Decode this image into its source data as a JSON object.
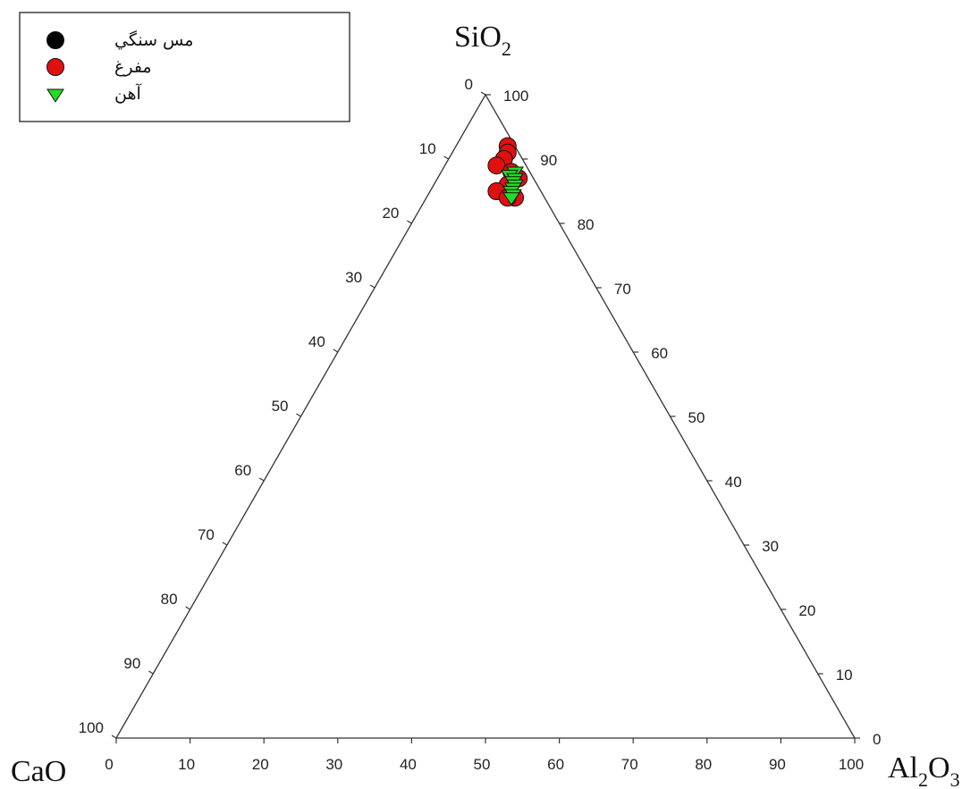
{
  "chart_data": {
    "type": "scatter",
    "subtype": "ternary",
    "axes": {
      "top": {
        "label": "SiO",
        "subscript": "2"
      },
      "left": {
        "label": "CaO",
        "subscript": ""
      },
      "right": {
        "label": "Al",
        "subscript": "2",
        "label_after": "O",
        "subscript_after": "3"
      }
    },
    "ticks": [
      0,
      10,
      20,
      30,
      40,
      50,
      60,
      70,
      80,
      90,
      100
    ],
    "tick_labels": [
      "0",
      "10",
      "20",
      "30",
      "40",
      "50",
      "60",
      "70",
      "80",
      "90",
      "100"
    ],
    "grid": false,
    "legend": {
      "position": "top-left",
      "entries": [
        {
          "label": "مس سنگي",
          "marker": "circle",
          "color": "#000000"
        },
        {
          "label": "مفرغ",
          "marker": "circle",
          "color": "#e01010"
        },
        {
          "label": "آهن",
          "marker": "triangle-down",
          "color": "#22dd22"
        }
      ]
    },
    "series": [
      {
        "name": "مس سنگي",
        "marker": "circle",
        "color": "#000000",
        "points": []
      },
      {
        "name": "مفرغ",
        "marker": "circle",
        "color": "#e01010",
        "points": [
          {
            "SiO2": 92,
            "CaO": 1,
            "Al2O3": 7
          },
          {
            "SiO2": 91,
            "CaO": 1.5,
            "Al2O3": 7.5
          },
          {
            "SiO2": 90,
            "CaO": 2.5,
            "Al2O3": 7.5
          },
          {
            "SiO2": 89,
            "CaO": 4,
            "Al2O3": 7
          },
          {
            "SiO2": 88,
            "CaO": 2.5,
            "Al2O3": 9.5
          },
          {
            "SiO2": 87,
            "CaO": 2,
            "Al2O3": 11
          },
          {
            "SiO2": 86,
            "CaO": 4,
            "Al2O3": 10
          },
          {
            "SiO2": 85,
            "CaO": 6,
            "Al2O3": 9
          },
          {
            "SiO2": 84,
            "CaO": 4,
            "Al2O3": 12
          },
          {
            "SiO2": 84,
            "CaO": 5,
            "Al2O3": 11
          }
        ]
      },
      {
        "name": "آهن",
        "marker": "triangle-down",
        "color": "#22dd22",
        "points": [
          {
            "SiO2": 88,
            "CaO": 2,
            "Al2O3": 10
          },
          {
            "SiO2": 87.5,
            "CaO": 3,
            "Al2O3": 9.5
          },
          {
            "SiO2": 87,
            "CaO": 2.5,
            "Al2O3": 10.5
          },
          {
            "SiO2": 86.5,
            "CaO": 3,
            "Al2O3": 10.5
          },
          {
            "SiO2": 86,
            "CaO": 3,
            "Al2O3": 11
          },
          {
            "SiO2": 85.5,
            "CaO": 3.5,
            "Al2O3": 11
          },
          {
            "SiO2": 85,
            "CaO": 4,
            "Al2O3": 11
          },
          {
            "SiO2": 84.5,
            "CaO": 4,
            "Al2O3": 11.5
          },
          {
            "SiO2": 84,
            "CaO": 4.5,
            "Al2O3": 11.5
          }
        ]
      }
    ]
  }
}
